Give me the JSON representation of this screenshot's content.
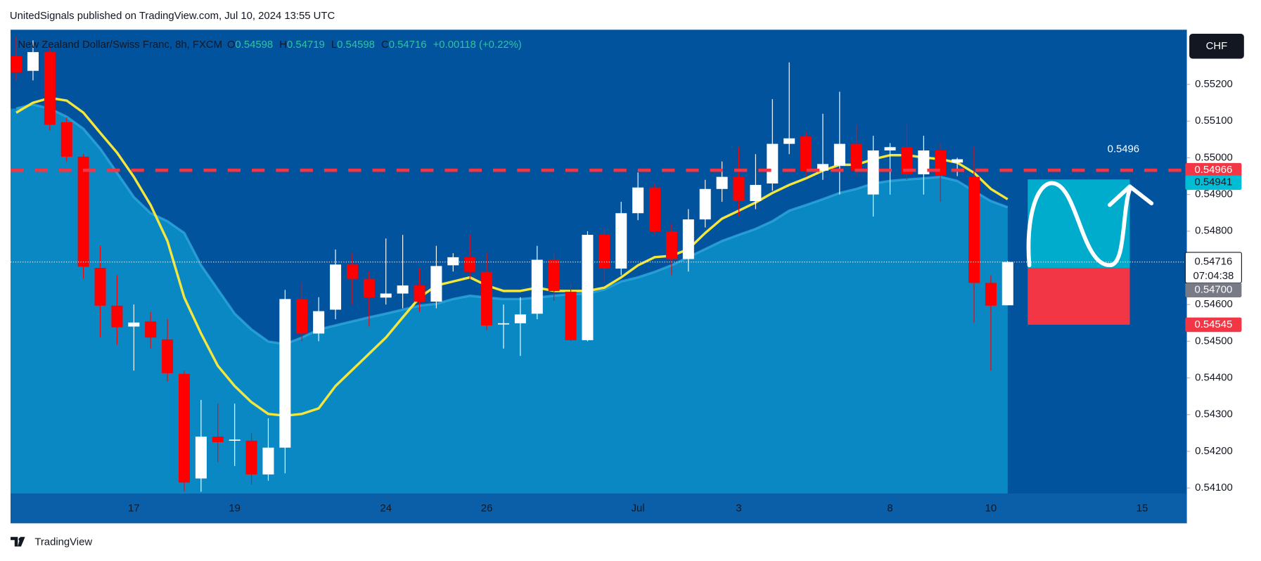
{
  "header": "UnitedSignals published on TradingView.com, Jul 10, 2024 13:55 UTC",
  "footer": "TradingView",
  "chart_data": {
    "type": "candlestick",
    "title": "New Zealand Dollar/Swiss Franc, 8h, FXCM",
    "ohlc_labels": [
      "O",
      "H",
      "L",
      "C"
    ],
    "change": "+0.00118 (+0.22%)",
    "currency": "CHF",
    "countdown": "07:04:38",
    "annotation": "0.5496",
    "up_color": "#ffffff",
    "down_color": "#ff0000",
    "categories": [
      null,
      null,
      null,
      null,
      null,
      null,
      null,
      "17",
      null,
      null,
      null,
      null,
      null,
      "19",
      null,
      null,
      null,
      null,
      null,
      null,
      null,
      null,
      "24",
      null,
      null,
      null,
      null,
      null,
      "26",
      null,
      null,
      null,
      null,
      null,
      null,
      null,
      null,
      "Jul",
      null,
      null,
      null,
      null,
      null,
      "3",
      null,
      null,
      null,
      null,
      null,
      null,
      null,
      null,
      "8",
      null,
      null,
      null,
      null,
      null,
      "10",
      null,
      null,
      null,
      null,
      null,
      null,
      null,
      null,
      "15"
    ],
    "open": [
      0.55277,
      0.55237,
      0.55288,
      0.55097,
      0.55003,
      0.547,
      0.54597,
      0.5454,
      0.54554,
      0.54505,
      0.54411,
      0.54126,
      0.5424,
      0.54229,
      0.54229,
      0.54137,
      0.5421,
      0.54615,
      0.54521,
      0.54586,
      0.54709,
      0.5467,
      0.54619,
      0.5463,
      0.54652,
      0.54608,
      0.54707,
      0.54729,
      0.54689,
      0.54547,
      0.54549,
      0.54575,
      0.54722,
      0.54635,
      0.54503,
      0.5479,
      0.54698,
      0.54849,
      0.54919,
      0.54799,
      0.54724,
      0.54832,
      0.54915,
      0.54948,
      0.54882,
      0.5493,
      0.55038,
      0.55058,
      0.54965,
      0.54979,
      0.55038,
      0.549,
      0.5502,
      0.55029,
      0.54955,
      0.5502,
      0.54987,
      0.54948,
      0.54659,
      0.54598,
      null,
      null,
      null,
      null,
      null,
      null,
      null,
      null
    ],
    "high": [
      0.55331,
      0.5532,
      0.553,
      0.5511,
      0.5501,
      0.5476,
      0.5468,
      0.546,
      0.5458,
      0.5456,
      0.5442,
      0.5434,
      0.5433,
      0.5433,
      0.5425,
      0.5429,
      0.5464,
      0.5466,
      0.5462,
      0.5475,
      0.5474,
      0.5469,
      0.5478,
      0.5479,
      0.547,
      0.5476,
      0.5474,
      0.5479,
      0.5474,
      0.546,
      0.5462,
      0.5476,
      0.5474,
      0.5466,
      0.548,
      0.5481,
      0.5488,
      0.5496,
      0.5493,
      0.5482,
      0.5486,
      0.5494,
      0.5499,
      0.5503,
      0.5501,
      0.5516,
      0.5526,
      0.5507,
      0.5512,
      0.5518,
      0.5509,
      0.5506,
      0.5504,
      0.5509,
      0.5506,
      0.5504,
      0.55,
      0.5503,
      0.5468,
      0.54719,
      null,
      null,
      null,
      null,
      null,
      null,
      null,
      null
    ],
    "low": [
      0.55211,
      0.55211,
      0.55075,
      0.5499,
      0.5467,
      0.5451,
      0.5449,
      0.5442,
      0.5448,
      0.5439,
      0.5409,
      0.5409,
      0.5417,
      0.5416,
      0.5411,
      0.5412,
      0.5414,
      0.545,
      0.545,
      0.5456,
      0.546,
      0.5454,
      0.546,
      0.5459,
      0.5458,
      0.5459,
      0.5469,
      0.5467,
      0.5453,
      0.5448,
      0.5446,
      0.5456,
      0.5461,
      0.545,
      0.545,
      0.5466,
      0.5468,
      0.5483,
      0.5479,
      0.5468,
      0.5469,
      0.5481,
      0.5488,
      0.5484,
      0.5486,
      0.5491,
      0.5501,
      0.5495,
      0.5494,
      0.549,
      0.5495,
      0.5484,
      0.549,
      0.5494,
      0.549,
      0.5488,
      0.5495,
      0.5455,
      0.5442,
      0.54598,
      null,
      null,
      null,
      null,
      null,
      null,
      null,
      null
    ],
    "close": [
      0.55233,
      0.55288,
      0.5509,
      0.55003,
      0.54703,
      0.54597,
      0.54538,
      0.54551,
      0.5451,
      0.54413,
      0.54115,
      0.5424,
      0.54225,
      0.54232,
      0.54137,
      0.5421,
      0.54615,
      0.54521,
      0.54582,
      0.54709,
      0.5467,
      0.54619,
      0.5463,
      0.54652,
      0.54608,
      0.54705,
      0.54729,
      0.54689,
      0.54543,
      0.54549,
      0.54573,
      0.54722,
      0.54637,
      0.54503,
      0.5479,
      0.54698,
      0.54849,
      0.54919,
      0.54799,
      0.54724,
      0.54832,
      0.54915,
      0.54948,
      0.54882,
      0.54926,
      0.55038,
      0.55053,
      0.54963,
      0.54983,
      0.55038,
      0.54965,
      0.5502,
      0.55029,
      0.54955,
      0.5502,
      0.54952,
      0.54996,
      0.54659,
      0.54597,
      0.54716,
      null,
      null,
      null,
      null,
      null,
      null,
      null,
      null
    ],
    "overlays": [
      {
        "kind": "area",
        "color": "#2fa8dc",
        "fill": "#0a88c4",
        "values": [
          0.55134,
          0.55145,
          0.55134,
          0.55112,
          0.55079,
          0.55025,
          0.54959,
          0.54893,
          0.54849,
          0.54827,
          0.54795,
          0.54707,
          0.54641,
          0.54575,
          0.54532,
          0.54499,
          0.54492,
          0.5451,
          0.54532,
          0.54543,
          0.54554,
          0.54565,
          0.54575,
          0.54586,
          0.54597,
          0.54602,
          0.54615,
          0.54624,
          0.54619,
          0.54615,
          0.54615,
          0.54619,
          0.54624,
          0.54628,
          0.5463,
          0.54641,
          0.54663,
          0.54674,
          0.54689,
          0.54707,
          0.54729,
          0.54751,
          0.54773,
          0.5479,
          0.54806,
          0.54827,
          0.54856,
          0.54871,
          0.54887,
          0.54904,
          0.54915,
          0.5493,
          0.54937,
          0.54941,
          0.54944,
          0.54948,
          0.54937,
          0.54909,
          0.54882,
          0.54865,
          null,
          null,
          null,
          null,
          null,
          null,
          null,
          null
        ]
      },
      {
        "kind": "line",
        "color": "#f5e63c",
        "values": [
          0.55123,
          0.5515,
          0.55163,
          0.55156,
          0.55123,
          0.55068,
          0.55014,
          0.54948,
          0.54871,
          0.54773,
          0.54619,
          0.54521,
          0.54433,
          0.54378,
          0.54334,
          0.54302,
          0.54297,
          0.54302,
          0.54317,
          0.54378,
          0.54422,
          0.54466,
          0.5451,
          0.54565,
          0.54619,
          0.54652,
          0.54663,
          0.54674,
          0.54652,
          0.54637,
          0.54637,
          0.54646,
          0.54637,
          0.54637,
          0.54637,
          0.54646,
          0.54674,
          0.54707,
          0.54729,
          0.54733,
          0.54751,
          0.54795,
          0.54834,
          0.54856,
          0.54878,
          0.54904,
          0.54926,
          0.54944,
          0.54965,
          0.54981,
          0.54981,
          0.54996,
          0.55007,
          0.55007,
          0.55001,
          0.54996,
          0.54987,
          0.54959,
          0.54915,
          0.54887,
          null,
          null,
          null,
          null,
          null,
          null,
          null,
          null
        ]
      }
    ],
    "levels": {
      "resistance": {
        "value": 0.54966,
        "color": "#f23645"
      },
      "target": {
        "value": 0.54941,
        "color": "#00bcd4"
      },
      "entry": {
        "value": 0.547,
        "label": "0.54700",
        "color": "#787b86"
      },
      "stop": {
        "value": 0.54545,
        "color": "#f23645"
      }
    },
    "ylim": [
      0.54004,
      0.55349
    ],
    "yticks": [
      {
        "value": 0.541,
        "label": "0.54100"
      },
      {
        "value": 0.542,
        "label": "0.54200"
      },
      {
        "value": 0.543,
        "label": "0.54300"
      },
      {
        "value": 0.544,
        "label": "0.54400"
      },
      {
        "value": 0.545,
        "label": "0.54500"
      },
      {
        "value": 0.546,
        "label": "0.54600"
      },
      {
        "value": 0.547,
        "label": "0.54700"
      },
      {
        "value": 0.548,
        "label": "0.54800"
      },
      {
        "value": 0.549,
        "label": "0.54900"
      },
      {
        "value": 0.55,
        "label": "0.55000"
      },
      {
        "value": 0.551,
        "label": "0.55100"
      },
      {
        "value": 0.552,
        "label": "0.55200"
      }
    ]
  }
}
